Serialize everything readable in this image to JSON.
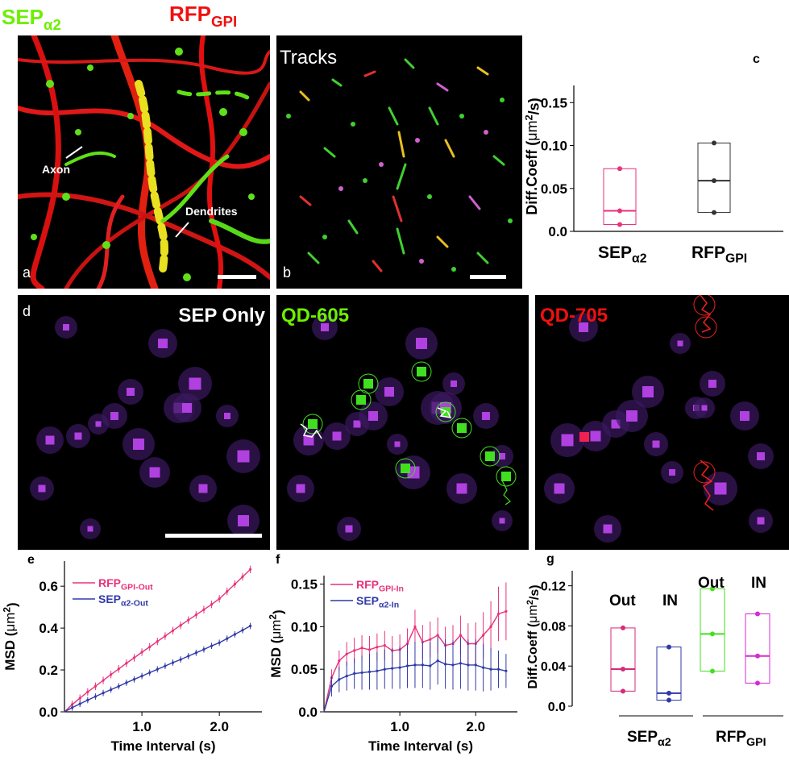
{
  "header": {
    "sep": "SEP",
    "sep_sub": "α2",
    "rfp": "RFP",
    "rfp_sub": "GPI"
  },
  "panel_a": {
    "letter": "a",
    "axon": "Axon",
    "dendrites": "Dendrites"
  },
  "panel_b": {
    "letter": "b",
    "title": "Tracks"
  },
  "panel_d": {
    "letter": "d",
    "titles": [
      "SEP Only",
      "QD-605",
      "QD-705"
    ],
    "title_colors": [
      "#ffffff",
      "#6cf000",
      "#f01010"
    ]
  },
  "colors": {
    "pink": "#e8327a",
    "blue": "#303aa8",
    "green": "#44e01c",
    "magenta": "#d42bd4",
    "dark": "#333333"
  },
  "chart_data": [
    {
      "id": "c",
      "type": "box",
      "ylabel": "Diff.Coeff (μm²/s)",
      "ylabel_parts": [
        "Diff.Coeff (",
        "μm",
        "2",
        "/s)"
      ],
      "ylim": [
        0,
        0.17
      ],
      "yticks": [
        "0.0",
        "0.05",
        "0.10",
        "0.15"
      ],
      "categories": [
        [
          "SEP",
          "α2"
        ],
        [
          "RFP",
          "GPI"
        ]
      ],
      "boxes": [
        {
          "q1": 0.008,
          "median": 0.024,
          "q3": 0.073,
          "points": [
            0.008,
            0.024,
            0.073
          ],
          "color": "#e8327a"
        },
        {
          "q1": 0.022,
          "median": 0.059,
          "q3": 0.103,
          "points": [
            0.022,
            0.059,
            0.103
          ],
          "color": "#333333"
        }
      ]
    },
    {
      "id": "e",
      "type": "line",
      "xlabel": "Time Interval (s)",
      "ylabel_parts": [
        "MSD (",
        "μm",
        "2",
        ")"
      ],
      "xlim": [
        0,
        2.55
      ],
      "ylim": [
        0,
        0.72
      ],
      "xticks": [
        "1.0",
        "2.0"
      ],
      "yticks": [
        "0.0",
        "0.2",
        "0.4",
        "0.6"
      ],
      "legend": [
        [
          "RFP",
          "GPI-Out"
        ],
        [
          "SEP",
          "α2-Out"
        ]
      ],
      "x": [
        0.0,
        0.1,
        0.2,
        0.3,
        0.4,
        0.5,
        0.6,
        0.7,
        0.8,
        0.9,
        1.0,
        1.1,
        1.2,
        1.3,
        1.4,
        1.5,
        1.6,
        1.7,
        1.8,
        1.9,
        2.0,
        2.1,
        2.2,
        2.3,
        2.4
      ],
      "series": [
        {
          "name": "RFP GPI-Out",
          "color": "#e8327a",
          "values": [
            0.0,
            0.035,
            0.065,
            0.095,
            0.122,
            0.15,
            0.178,
            0.205,
            0.232,
            0.258,
            0.285,
            0.31,
            0.336,
            0.362,
            0.388,
            0.413,
            0.438,
            0.463,
            0.488,
            0.513,
            0.54,
            0.575,
            0.61,
            0.645,
            0.68
          ],
          "err": 0.018
        },
        {
          "name": "SEP α2-Out",
          "color": "#303aa8",
          "values": [
            0.0,
            0.02,
            0.038,
            0.056,
            0.073,
            0.09,
            0.106,
            0.122,
            0.139,
            0.155,
            0.171,
            0.187,
            0.203,
            0.219,
            0.235,
            0.25,
            0.266,
            0.282,
            0.298,
            0.315,
            0.33,
            0.35,
            0.37,
            0.39,
            0.41
          ],
          "err": 0.015
        }
      ]
    },
    {
      "id": "f",
      "type": "line",
      "xlabel": "Time Interval (s)",
      "ylabel_parts": [
        "MSD (",
        "μm",
        "2",
        ")"
      ],
      "xlim": [
        0,
        2.55
      ],
      "ylim": [
        0,
        0.16
      ],
      "xticks": [
        "1.0",
        "2.0"
      ],
      "yticks": [
        "0.0",
        "0.05",
        "0.10",
        "0.15"
      ],
      "legend": [
        [
          "RFP",
          "GPI-In"
        ],
        [
          "SEP",
          "α2-In"
        ]
      ],
      "x": [
        0.0,
        0.1,
        0.2,
        0.3,
        0.4,
        0.5,
        0.6,
        0.7,
        0.8,
        0.9,
        1.0,
        1.1,
        1.2,
        1.3,
        1.4,
        1.5,
        1.6,
        1.7,
        1.8,
        1.9,
        2.0,
        2.1,
        2.2,
        2.3,
        2.4
      ],
      "series": [
        {
          "name": "RFP GPI-In",
          "color": "#e8327a",
          "values": [
            0.0,
            0.04,
            0.06,
            0.068,
            0.072,
            0.075,
            0.073,
            0.076,
            0.078,
            0.072,
            0.073,
            0.08,
            0.1,
            0.082,
            0.085,
            0.09,
            0.078,
            0.08,
            0.09,
            0.08,
            0.08,
            0.09,
            0.1,
            0.115,
            0.118
          ],
          "err": [
            0,
            0.01,
            0.012,
            0.014,
            0.015,
            0.015,
            0.016,
            0.016,
            0.017,
            0.017,
            0.018,
            0.018,
            0.02,
            0.02,
            0.021,
            0.021,
            0.022,
            0.022,
            0.023,
            0.024,
            0.025,
            0.027,
            0.03,
            0.032,
            0.034
          ]
        },
        {
          "name": "SEP α2-In",
          "color": "#303aa8",
          "values": [
            0.0,
            0.03,
            0.038,
            0.042,
            0.045,
            0.046,
            0.047,
            0.048,
            0.05,
            0.051,
            0.052,
            0.054,
            0.055,
            0.055,
            0.054,
            0.06,
            0.056,
            0.055,
            0.057,
            0.055,
            0.055,
            0.052,
            0.05,
            0.05,
            0.048
          ],
          "err": [
            0,
            0.012,
            0.015,
            0.017,
            0.018,
            0.02,
            0.021,
            0.022,
            0.023,
            0.024,
            0.025,
            0.026,
            0.027,
            0.027,
            0.028,
            0.028,
            0.029,
            0.029,
            0.03,
            0.03,
            0.03,
            0.028,
            0.025,
            0.022,
            0.02
          ]
        }
      ]
    },
    {
      "id": "g",
      "type": "box",
      "ylabel_parts": [
        "Diff.Coeff (",
        "μm",
        "2",
        "/s)"
      ],
      "ylim": [
        0,
        0.135
      ],
      "yticks": [
        "0.0",
        "0.04",
        "0.08",
        "0.12"
      ],
      "box_labels": [
        "Out",
        "IN",
        "Out",
        "IN"
      ],
      "groups": [
        [
          "SEP",
          "α2"
        ],
        [
          "RFP",
          "GPI"
        ]
      ],
      "boxes": [
        {
          "q1": 0.015,
          "median": 0.037,
          "q3": 0.078,
          "points": [
            0.015,
            0.037,
            0.078
          ],
          "color": "#d42b7a"
        },
        {
          "q1": 0.006,
          "median": 0.013,
          "q3": 0.059,
          "points": [
            0.006,
            0.013,
            0.059
          ],
          "color": "#303aa8"
        },
        {
          "q1": 0.035,
          "median": 0.072,
          "q3": 0.117,
          "points": [
            0.035,
            0.072,
            0.117
          ],
          "color": "#44e01c"
        },
        {
          "q1": 0.023,
          "median": 0.05,
          "q3": 0.092,
          "points": [
            0.023,
            0.05,
            0.092
          ],
          "color": "#d42bd4"
        }
      ]
    }
  ]
}
